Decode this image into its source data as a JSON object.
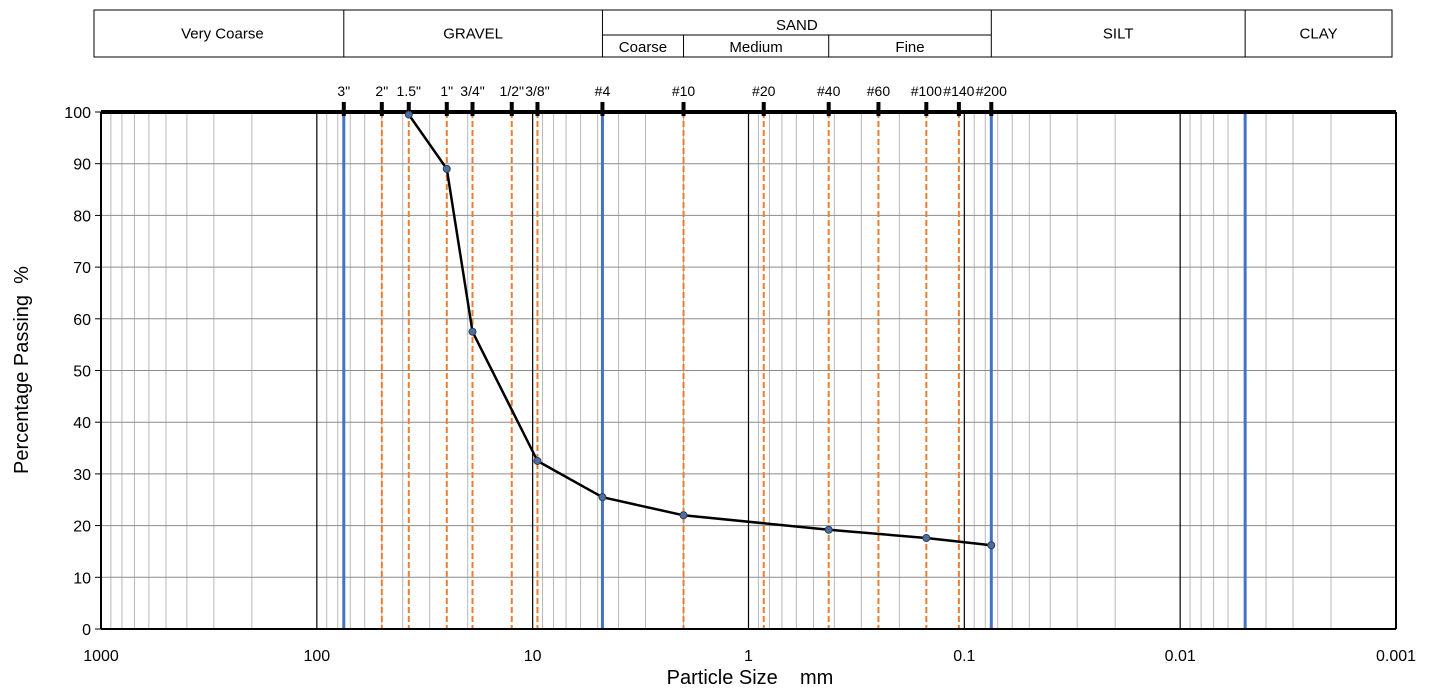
{
  "chart_data": {
    "type": "line",
    "xlabel": "Particle Size    mm",
    "ylabel": "Percentage Passing  %",
    "x_scale": "log",
    "x_reversed": true,
    "xlim": [
      1000,
      0.001
    ],
    "ylim": [
      0,
      100
    ],
    "grid": true,
    "x_tick_values": [
      1000,
      100,
      10,
      1,
      0.1,
      0.01,
      0.001
    ],
    "x_tick_labels": [
      "1000",
      "100",
      "10",
      "1",
      "0.1",
      "0.01",
      "0.001"
    ],
    "y_tick_values": [
      0,
      10,
      20,
      30,
      40,
      50,
      60,
      70,
      80,
      90,
      100
    ],
    "y_tick_labels": [
      "0",
      "10",
      "20",
      "30",
      "40",
      "50",
      "60",
      "70",
      "80",
      "90",
      "100"
    ],
    "series": [
      {
        "color": "#000000",
        "marker_color": "#4f6e9c",
        "x": [
          37.5,
          25,
          19,
          9.5,
          4.75,
          2,
          0.425,
          0.15,
          0.075
        ],
        "y": [
          99.5,
          89,
          57.5,
          32.5,
          25.5,
          22,
          19.2,
          17.6,
          16.2
        ]
      }
    ],
    "sieves": [
      {
        "label": "3\"",
        "size": 75
      },
      {
        "label": "2\"",
        "size": 50
      },
      {
        "label": "1.5\"",
        "size": 37.5
      },
      {
        "label": "1\"",
        "size": 25
      },
      {
        "label": "3/4\"",
        "size": 19
      },
      {
        "label": "1/2\"",
        "size": 12.5
      },
      {
        "label": "3/8\"",
        "size": 9.5
      },
      {
        "label": "#4",
        "size": 4.75
      },
      {
        "label": "#10",
        "size": 2
      },
      {
        "label": "#20",
        "size": 0.85
      },
      {
        "label": "#40",
        "size": 0.425
      },
      {
        "label": "#60",
        "size": 0.25
      },
      {
        "label": "#100",
        "size": 0.15
      },
      {
        "label": "#140",
        "size": 0.106
      },
      {
        "label": "#200",
        "size": 0.075
      }
    ],
    "boundary_lines": [
      {
        "value": 75,
        "color": "#4472c4"
      },
      {
        "value": 4.75,
        "color": "#4472c4"
      },
      {
        "value": 0.075,
        "color": "#4472c4"
      },
      {
        "value": 0.005,
        "color": "#4472c4"
      }
    ],
    "sieve_line_color": "#ed7d31",
    "classification": {
      "columns": [
        {
          "label": "Very Coarse",
          "from": 1000,
          "to": 75
        },
        {
          "label": "GRAVEL",
          "from": 75,
          "to": 4.75
        },
        {
          "label": "SAND",
          "from": 4.75,
          "to": 0.075,
          "sub": [
            {
              "label": "Coarse",
              "from": 4.75,
              "to": 2
            },
            {
              "label": "Medium",
              "from": 2,
              "to": 0.425
            },
            {
              "label": "Fine",
              "from": 0.425,
              "to": 0.075
            }
          ]
        },
        {
          "label": "SILT",
          "from": 0.075,
          "to": 0.005
        },
        {
          "label": "CLAY",
          "from": 0.005,
          "to": 0.001
        }
      ]
    }
  }
}
